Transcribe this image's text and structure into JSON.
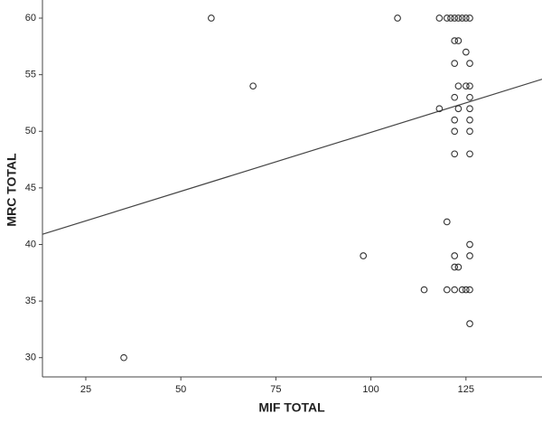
{
  "chart_data": {
    "type": "scatter",
    "x_label": "MIF TOTAL",
    "y_label": "MRC TOTAL",
    "x": [
      35,
      58,
      69,
      98,
      107,
      114,
      118,
      118,
      120,
      120,
      120,
      121,
      122,
      122,
      122,
      122,
      122,
      122,
      122,
      122,
      122,
      122,
      123,
      123,
      123,
      123,
      123,
      124,
      124,
      125,
      125,
      125,
      125,
      126,
      126,
      126,
      126,
      126,
      126,
      126,
      126,
      126,
      126,
      126,
      126
    ],
    "values": [
      30,
      60,
      54,
      39,
      60,
      36,
      60,
      52,
      60,
      42,
      36,
      60,
      60,
      58,
      56,
      53,
      51,
      50,
      48,
      39,
      38,
      36,
      60,
      58,
      54,
      52,
      38,
      60,
      36,
      60,
      57,
      54,
      36,
      60,
      56,
      54,
      53,
      52,
      51,
      50,
      48,
      40,
      39,
      36,
      33
    ],
    "color": "#333333",
    "fit_line": {
      "x": [
        13.6,
        145
      ],
      "values": [
        40.9,
        54.6
      ],
      "color": "#444444"
    },
    "xlim": [
      13.6,
      145
    ],
    "ylim": [
      28.3,
      61.6
    ],
    "xticks": [
      25,
      50,
      75,
      100,
      125
    ],
    "yticks": [
      30,
      35,
      40,
      45,
      50,
      55,
      60
    ],
    "grid": false
  }
}
